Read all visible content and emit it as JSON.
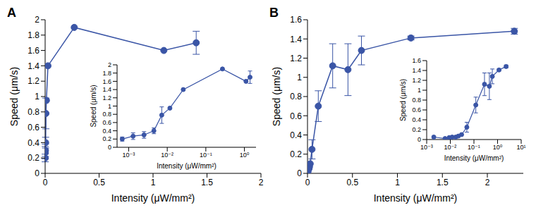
{
  "chart_data": [
    {
      "type": "line",
      "title": "A",
      "x_label": "Intensity (μW/mm²)",
      "y_label": "Speed (μm/s)",
      "x": [
        0.00068,
        0.0013,
        0.0025,
        0.0045,
        0.0072,
        0.0117,
        0.026,
        0.27,
        1.1,
        1.4
      ],
      "values": [
        0.2,
        0.27,
        0.3,
        0.4,
        0.78,
        0.95,
        1.4,
        1.9,
        1.6,
        1.7
      ],
      "errors": [
        0.05,
        0.08,
        0.08,
        0.07,
        0.2,
        null,
        null,
        null,
        null,
        0.15
      ],
      "xlim": [
        0,
        2
      ],
      "xticks": [
        0,
        0.5,
        1,
        1.5,
        2
      ],
      "ylim": [
        0,
        2
      ],
      "yticks": [
        0,
        0.2,
        0.4,
        0.6,
        0.8,
        1,
        1.2,
        1.4,
        1.6,
        1.8,
        2
      ],
      "color": "#3a55a6",
      "marker": "circle",
      "line_style": "solid"
    },
    {
      "type": "line",
      "x_label": "Intensity (μW/mm²)",
      "y_label": "Speed (μm/s)",
      "log": "x",
      "x": [
        0.00068,
        0.0013,
        0.0025,
        0.0045,
        0.0072,
        0.0117,
        0.026,
        0.27,
        1.1,
        1.4
      ],
      "values": [
        0.2,
        0.27,
        0.3,
        0.4,
        0.78,
        0.95,
        1.4,
        1.9,
        1.6,
        1.7
      ],
      "errors": [
        0.05,
        0.08,
        0.08,
        0.07,
        0.2,
        null,
        null,
        null,
        null,
        0.15
      ],
      "xlim": [
        0.0005,
        2
      ],
      "xticks": [
        {
          "value": 0.001,
          "label": "10⁻³"
        },
        {
          "value": 0.01,
          "label": "10⁻²"
        },
        {
          "value": 0.1,
          "label": "10⁻¹"
        },
        {
          "value": 1,
          "label": "10⁰"
        }
      ],
      "ylim": [
        0,
        2
      ],
      "yticks": [
        0,
        0.2,
        0.4,
        0.6,
        0.8,
        1,
        1.2,
        1.4,
        1.6,
        1.8,
        2
      ],
      "color": "#3a55a6",
      "marker": "circle",
      "line_style": "solid"
    },
    {
      "type": "line",
      "title": "B",
      "x_label": "Intensity (μW/mm²)",
      "y_label": "Speed (μm/s)",
      "x": [
        0.002,
        0.006,
        0.009,
        0.012,
        0.017,
        0.022,
        0.03,
        0.05,
        0.12,
        0.28,
        0.45,
        0.6,
        1.15,
        2.3
      ],
      "values": [
        0.05,
        0.02,
        0.04,
        0.05,
        0.05,
        0.07,
        0.1,
        0.25,
        0.7,
        1.12,
        1.08,
        1.28,
        1.41,
        1.48
      ],
      "errors": [
        null,
        null,
        null,
        null,
        null,
        null,
        null,
        0.1,
        0.16,
        0.23,
        0.27,
        0.15,
        0.02,
        0.03
      ],
      "xlim": [
        0,
        2.4
      ],
      "xticks": [
        0,
        0.5,
        1,
        1.5,
        2
      ],
      "ylim": [
        0,
        1.6
      ],
      "yticks": [
        0,
        0.2,
        0.4,
        0.6,
        0.8,
        1,
        1.2,
        1.4,
        1.6
      ],
      "color": "#3a55a6",
      "marker": "circle",
      "line_style": "solid"
    },
    {
      "type": "line",
      "x_label": "Intensity (μW/mm²)",
      "y_label": "Speed (μm/s)",
      "log": "x",
      "x": [
        0.002,
        0.006,
        0.009,
        0.012,
        0.017,
        0.022,
        0.03,
        0.05,
        0.12,
        0.28,
        0.45,
        0.6,
        1.15,
        2.3
      ],
      "values": [
        0.05,
        0.02,
        0.04,
        0.05,
        0.05,
        0.07,
        0.1,
        0.25,
        0.7,
        1.12,
        1.08,
        1.28,
        1.41,
        1.48
      ],
      "errors": [
        null,
        null,
        null,
        null,
        null,
        null,
        null,
        0.1,
        0.16,
        0.23,
        0.27,
        0.15,
        0.02,
        0.03
      ],
      "xlim": [
        0.001,
        10
      ],
      "xticks": [
        {
          "value": 0.001,
          "label": "10⁻³"
        },
        {
          "value": 0.01,
          "label": "10⁻²"
        },
        {
          "value": 0.1,
          "label": "10⁻¹"
        },
        {
          "value": 1,
          "label": "10⁰"
        },
        {
          "value": 10,
          "label": "10¹"
        }
      ],
      "ylim": [
        0,
        1.6
      ],
      "yticks": [
        0,
        0.2,
        0.4,
        0.6,
        0.8,
        1,
        1.2,
        1.4,
        1.6
      ],
      "color": "#3a55a6",
      "marker": "circle",
      "line_style": "solid"
    }
  ]
}
